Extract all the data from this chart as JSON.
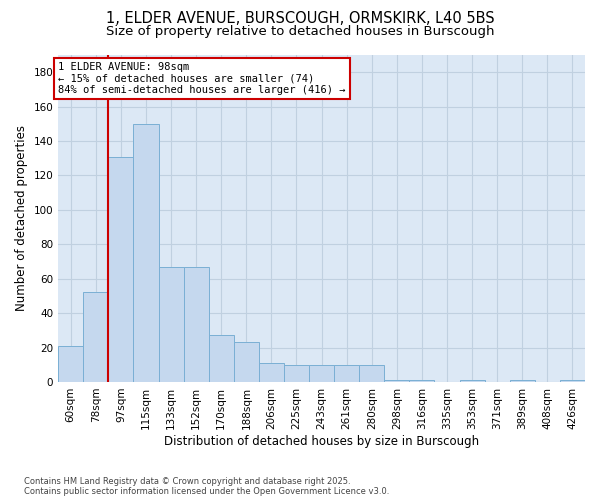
{
  "title_line1": "1, ELDER AVENUE, BURSCOUGH, ORMSKIRK, L40 5BS",
  "title_line2": "Size of property relative to detached houses in Burscough",
  "xlabel": "Distribution of detached houses by size in Burscough",
  "ylabel": "Number of detached properties",
  "categories": [
    "60sqm",
    "78sqm",
    "97sqm",
    "115sqm",
    "133sqm",
    "152sqm",
    "170sqm",
    "188sqm",
    "206sqm",
    "225sqm",
    "243sqm",
    "261sqm",
    "280sqm",
    "298sqm",
    "316sqm",
    "335sqm",
    "353sqm",
    "371sqm",
    "389sqm",
    "408sqm",
    "426sqm"
  ],
  "values": [
    21,
    52,
    131,
    150,
    67,
    67,
    27,
    23,
    11,
    10,
    10,
    10,
    10,
    1,
    1,
    0,
    1,
    0,
    1,
    0,
    1
  ],
  "bar_color": "#c5d8ee",
  "bar_edge_color": "#7aafd4",
  "vline_color": "#cc0000",
  "vline_x": 1.5,
  "annotation_text": "1 ELDER AVENUE: 98sqm\n← 15% of detached houses are smaller (74)\n84% of semi-detached houses are larger (416) →",
  "annotation_box_facecolor": "#ffffff",
  "annotation_box_edgecolor": "#cc0000",
  "ylim": [
    0,
    190
  ],
  "yticks": [
    0,
    20,
    40,
    60,
    80,
    100,
    120,
    140,
    160,
    180
  ],
  "grid_color": "#c0d0e0",
  "plot_bg_color": "#dce8f5",
  "footer_text": "Contains HM Land Registry data © Crown copyright and database right 2025.\nContains public sector information licensed under the Open Government Licence v3.0.",
  "title_fontsize": 10.5,
  "subtitle_fontsize": 9.5,
  "xlabel_fontsize": 8.5,
  "ylabel_fontsize": 8.5,
  "tick_fontsize": 7.5,
  "ann_fontsize": 7.5
}
